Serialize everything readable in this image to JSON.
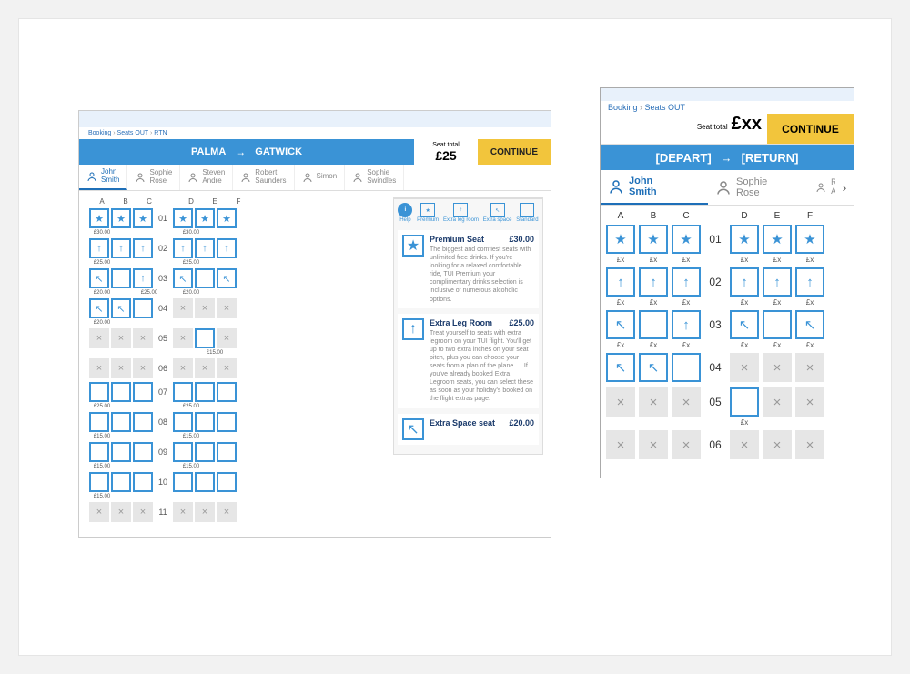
{
  "colors": {
    "primary_blue": "#3a93d6",
    "link_blue": "#1e6fb8",
    "accent_yellow": "#f2c53c",
    "pale_blue": "#e8f1fb",
    "grey_seat": "#e6e6e6",
    "text_grey": "#888888",
    "border_grey": "#dddddd",
    "bg": "#f2f2f2"
  },
  "desktop": {
    "breadcrumb": [
      "Booking",
      "Seats OUT",
      "RTN"
    ],
    "route_from": "PALMA",
    "route_to": "GATWICK",
    "seat_total_label": "Seat total",
    "seat_total_amount": "£25",
    "continue_label": "CONTINUE",
    "passengers": [
      {
        "first": "John",
        "last": "Smith",
        "active": true
      },
      {
        "first": "Sophie",
        "last": "Rose",
        "active": false
      },
      {
        "first": "Steven",
        "last": "Andre",
        "active": false
      },
      {
        "first": "Robert",
        "last": "Saunders",
        "active": false
      },
      {
        "first": "Simon",
        "last": "",
        "active": false
      },
      {
        "first": "Sophie",
        "last": "Swindles",
        "active": false
      }
    ],
    "columns": [
      "A",
      "B",
      "C",
      "D",
      "E",
      "F"
    ],
    "rows": [
      {
        "n": "01",
        "cells": [
          "star",
          "star",
          "star",
          "star",
          "star",
          "star"
        ],
        "price_left": "£30.00",
        "price_right": "£30.00"
      },
      {
        "n": "02",
        "cells": [
          "up",
          "up",
          "up",
          "up",
          "up",
          "up"
        ],
        "price_left": "£25.00",
        "price_right": "£25.00"
      },
      {
        "n": "03",
        "cells": [
          "diag",
          "blank",
          "up",
          "diag",
          "blank",
          "diag"
        ],
        "price_left": "£20.00",
        "price_right": "£20.00",
        "mid_price": "£25.00"
      },
      {
        "n": "04",
        "cells": [
          "diag",
          "diag",
          "blank",
          "x",
          "x",
          "x"
        ],
        "price_left": "£20.00"
      },
      {
        "n": "05",
        "cells": [
          "x",
          "x",
          "x",
          "x",
          "blank",
          "x"
        ],
        "price_right_single": "£15.00"
      },
      {
        "n": "06",
        "cells": [
          "x",
          "x",
          "x",
          "x",
          "x",
          "x"
        ]
      },
      {
        "n": "07",
        "cells": [
          "blank",
          "blank",
          "blank",
          "blank",
          "blank",
          "blank"
        ],
        "price_left": "£25.00",
        "price_right": "£25.00"
      },
      {
        "n": "08",
        "cells": [
          "blank",
          "blank",
          "blank",
          "blank",
          "blank",
          "blank"
        ],
        "price_left": "£15.00",
        "price_right": "£15.00"
      },
      {
        "n": "09",
        "cells": [
          "blank",
          "blank",
          "blank",
          "blank",
          "blank",
          "blank"
        ],
        "price_left": "£15.00",
        "price_right": "£15.00"
      },
      {
        "n": "10",
        "cells": [
          "blank",
          "blank",
          "blank",
          "blank",
          "blank",
          "blank"
        ],
        "price_left": "£15.00"
      },
      {
        "n": "11",
        "cells": [
          "x",
          "x",
          "x",
          "x",
          "x",
          "x"
        ]
      }
    ],
    "legend": {
      "help": "Help",
      "premium": "Premium",
      "extra_leg": "Extra leg room",
      "extra_space": "Extra space",
      "standard": "Standard"
    },
    "seat_types": [
      {
        "icon": "star",
        "title": "Premium Seat",
        "price": "£30.00",
        "desc": "The biggest and comfiest seats with unlimited free drinks. If you're looking for a relaxed comfortable ride, TUI Premium your complimentary drinks selection is inclusive of numerous alcoholic options."
      },
      {
        "icon": "up",
        "title": "Extra Leg Room",
        "price": "£25.00",
        "desc": "Treat yourself to seats with extra legroom on your TUI flight. You'll get up to two extra inches on your seat pitch, plus you can choose your seats from a plan of the plane. ... If you've already booked Extra Legroom seats, you can select these as soon as your holiday's booked on the flight extras page."
      },
      {
        "icon": "diag",
        "title": "Extra Space seat",
        "price": "£20.00",
        "desc": ""
      }
    ]
  },
  "mobile": {
    "breadcrumb": [
      "Booking",
      "Seats OUT"
    ],
    "seat_total_label": "Seat total",
    "seat_total_amount": "£xx",
    "continue_label": "CONTINUE",
    "route_from": "[DEPART]",
    "route_to": "[RETURN]",
    "passengers": [
      {
        "first": "John",
        "last": "Smith",
        "active": true
      },
      {
        "first": "Sophie",
        "last": "Rose",
        "active": false
      },
      {
        "first": "R",
        "last": "A",
        "active": false
      }
    ],
    "columns": [
      "A",
      "B",
      "C",
      "D",
      "E",
      "F"
    ],
    "price_placeholder": "£x",
    "rows": [
      {
        "n": "01",
        "cells": [
          "star",
          "star",
          "star",
          "star",
          "star",
          "star"
        ],
        "show_price": true
      },
      {
        "n": "02",
        "cells": [
          "up",
          "up",
          "up",
          "up",
          "up",
          "up"
        ],
        "show_price": true
      },
      {
        "n": "03",
        "cells": [
          "diag",
          "blank",
          "up",
          "diag",
          "blank",
          "diag"
        ],
        "show_price": true
      },
      {
        "n": "04",
        "cells": [
          "diag",
          "diag",
          "blank",
          "x",
          "x",
          "x"
        ]
      },
      {
        "n": "05",
        "cells": [
          "x",
          "x",
          "x",
          "blank_solo",
          "x_none",
          "x_none"
        ],
        "solo_price": true
      },
      {
        "n": "06",
        "cells": [
          "x",
          "x",
          "x",
          "x",
          "x",
          "x"
        ]
      }
    ]
  }
}
